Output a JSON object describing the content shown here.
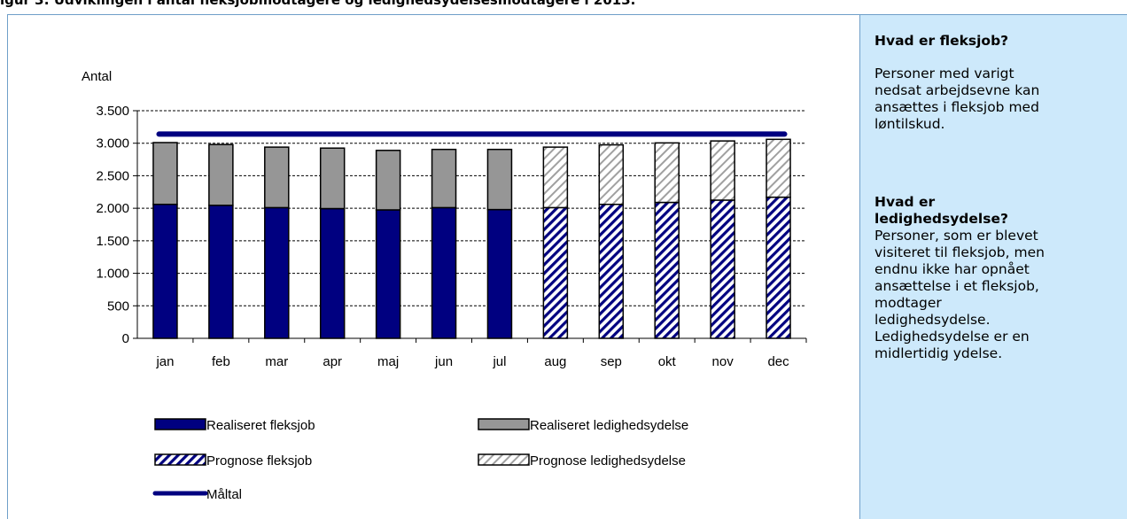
{
  "figure_title": "igur 3: Udviklingen i antal fleksjobmodtagere og ledighedsydelsesmodtagere i 2013.",
  "info_panel": {
    "heading1": "Hvad er fleksjob?",
    "text1_lines": [
      "Personer med varigt",
      "nedsat arbejdsevne kan",
      "ansættes i fleksjob med",
      "løntilskud."
    ],
    "heading2_lines": [
      "Hvad er",
      "ledighedsydelse?"
    ],
    "text2_lines": [
      "Personer, som er blevet",
      "visiteret til fleksjob, men",
      "endnu ikke har opnået",
      "ansættelse i et fleksjob,",
      "modtager",
      "ledighedsydelse.",
      "Ledighedsydelse er en",
      "midlertidig ydelse."
    ]
  },
  "colors": {
    "fleksjob": "#000080",
    "ledighedsydelse": "#969696",
    "prognose_ledighed_stripe": "#a0a0a0",
    "maaltal": "#000080",
    "panel_bg": "#cde9fb"
  },
  "chart_data": {
    "type": "bar",
    "stacked": true,
    "ylabel": "Antal",
    "ylim": [
      0,
      3500
    ],
    "yticks": [
      0,
      500,
      1000,
      1500,
      2000,
      2500,
      3000,
      3500
    ],
    "ytick_labels": [
      "0",
      "500",
      "1.000",
      "1.500",
      "2.000",
      "2.500",
      "3.000",
      "3.500"
    ],
    "categories": [
      "jan",
      "feb",
      "mar",
      "apr",
      "maj",
      "jun",
      "jul",
      "aug",
      "sep",
      "okt",
      "nov",
      "dec"
    ],
    "grid": true,
    "series": [
      {
        "name": "Realiseret fleksjob",
        "values": [
          2060,
          2045,
          2010,
          1995,
          1975,
          2010,
          1980,
          null,
          null,
          null,
          null,
          null
        ]
      },
      {
        "name": "Realiseret ledighedsydelse",
        "values": [
          950,
          935,
          930,
          930,
          915,
          895,
          925,
          null,
          null,
          null,
          null,
          null
        ]
      },
      {
        "name": "Prognose fleksjob",
        "values": [
          null,
          null,
          null,
          null,
          null,
          null,
          null,
          2010,
          2060,
          2090,
          2125,
          2170
        ]
      },
      {
        "name": "Prognose ledighedsydelse",
        "values": [
          null,
          null,
          null,
          null,
          null,
          null,
          null,
          930,
          915,
          915,
          910,
          890
        ]
      },
      {
        "name": "Måltal",
        "type": "line",
        "value": 3140
      }
    ],
    "legend_position": "bottom"
  }
}
